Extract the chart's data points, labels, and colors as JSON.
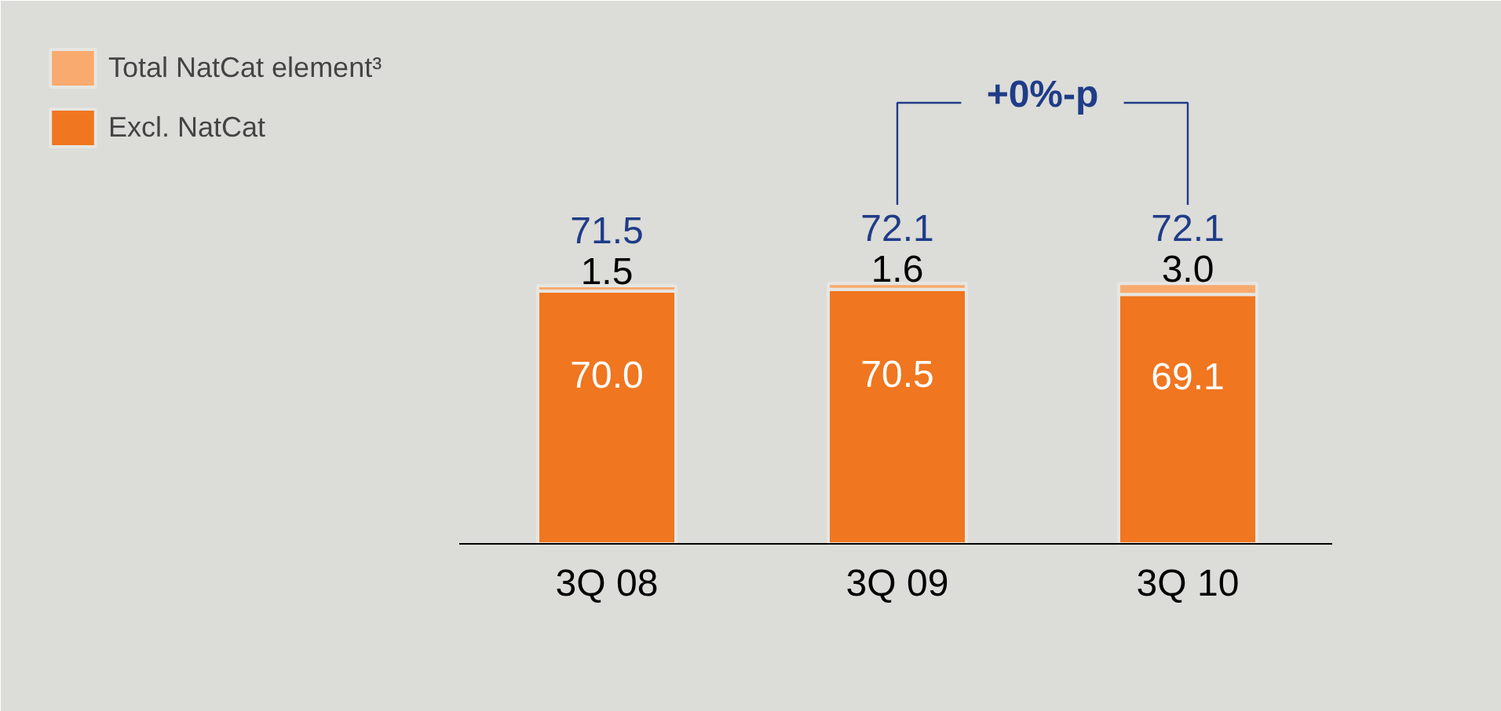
{
  "chart_data": {
    "type": "bar",
    "categories": [
      "3Q 08",
      "3Q 09",
      "3Q 10"
    ],
    "series": [
      {
        "name": "Excl. NatCat",
        "color": "#f07620",
        "values": [
          70.0,
          70.5,
          69.1
        ],
        "value_labels": [
          "70.0",
          "70.5",
          "69.1"
        ]
      },
      {
        "name": "Total NatCat element³",
        "color": "#f9aa6e",
        "values": [
          1.5,
          1.6,
          3.0
        ],
        "value_labels": [
          "1.5",
          "1.6",
          "3.0"
        ]
      }
    ],
    "stacked": true,
    "totals": [
      "71.5",
      "72.1",
      "72.1"
    ],
    "legend": "top left",
    "grid": false,
    "annotations": [
      "+0%-p"
    ]
  }
}
